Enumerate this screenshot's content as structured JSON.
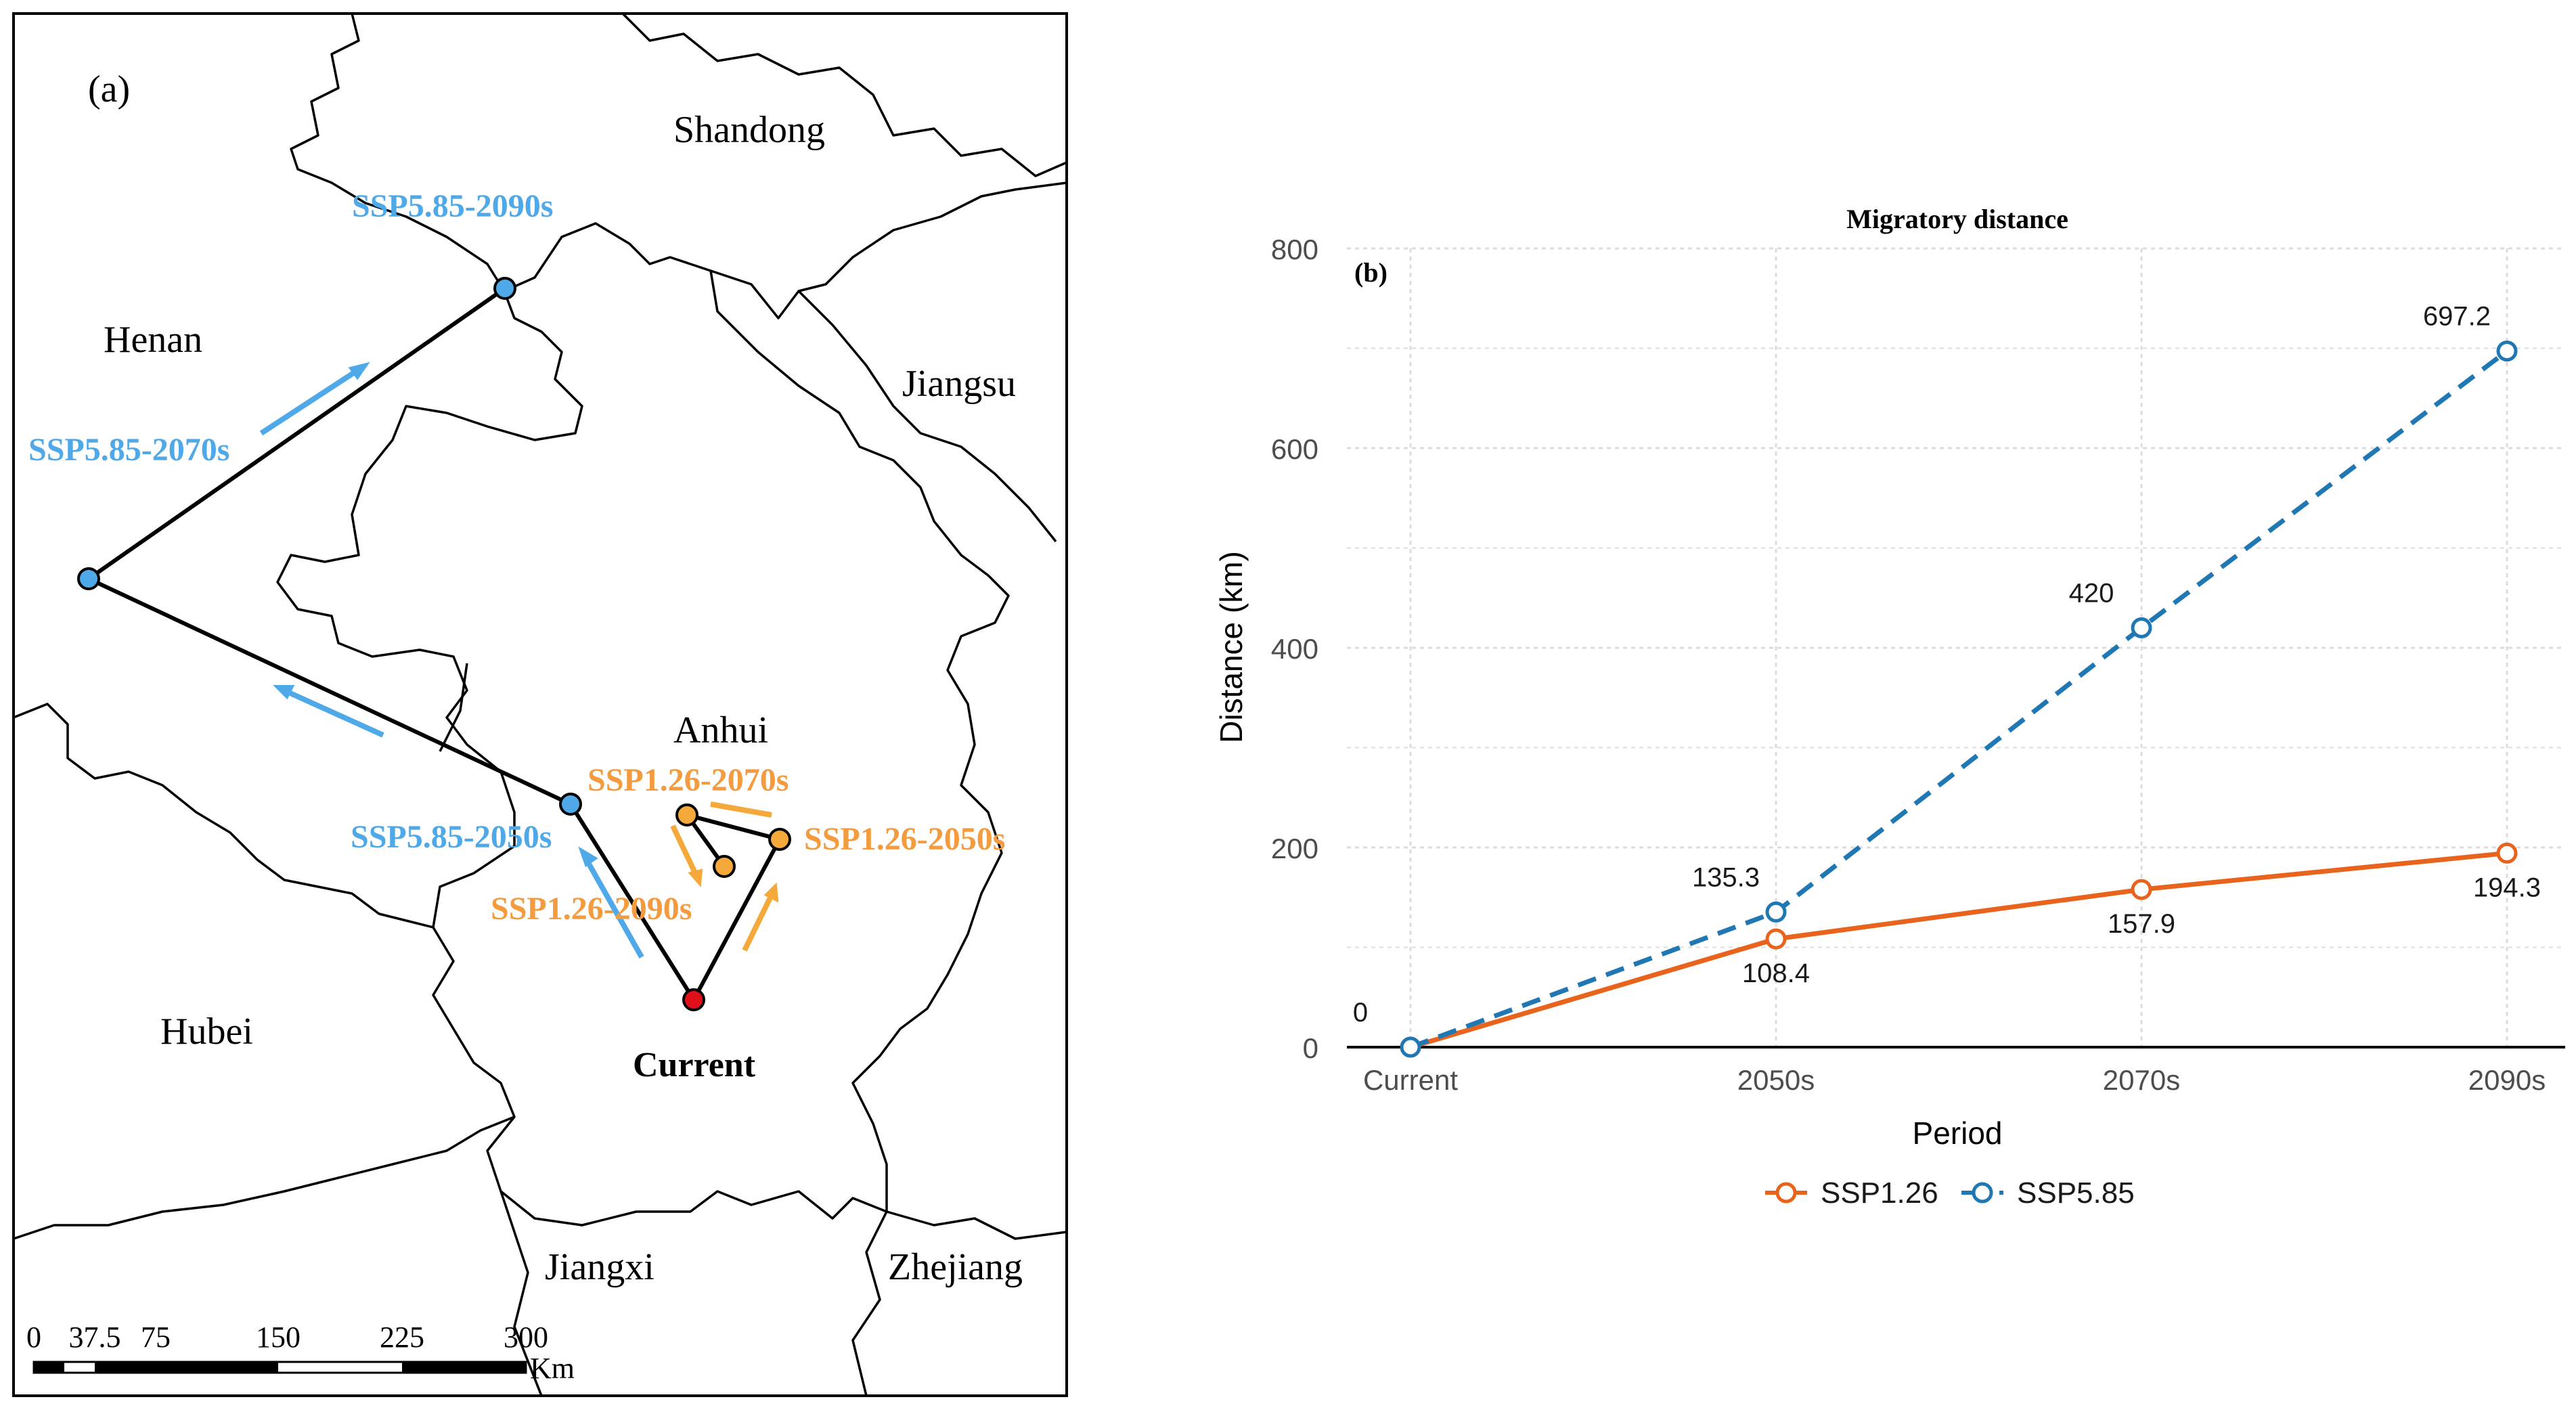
{
  "map": {
    "panel_label": "(a)",
    "provinces": [
      "Shandong",
      "Henan",
      "Jiangsu",
      "Anhui",
      "Hubei",
      "Jiangxi",
      "Zhejiang"
    ],
    "current_label": "Current",
    "ssp585_labels": [
      "SSP5.85-2090s",
      "SSP5.85-2070s",
      "SSP5.85-2050s"
    ],
    "ssp126_labels": [
      "SSP1.26-2070s",
      "SSP1.26-2050s",
      "SSP1.26-2090s"
    ],
    "scale_ticks": [
      "0",
      "37.5",
      "75",
      "150",
      "225",
      "300"
    ],
    "scale_unit": "Km",
    "colors": {
      "ssp585": "#4fa9e8",
      "ssp126": "#f4a93a",
      "current": "#e0101a",
      "ssp126_label": "#f59b3f"
    }
  },
  "chart_data": {
    "type": "line",
    "panel_label": "(b)",
    "title": "Migratory distance",
    "xlabel": "Period",
    "ylabel": "Distance (km)",
    "categories": [
      "Current",
      "2050s",
      "2070s",
      "2090s"
    ],
    "ylim": [
      0,
      800
    ],
    "yticks": [
      "0",
      "200",
      "400",
      "600",
      "800"
    ],
    "grid": true,
    "legend_position": "bottom",
    "series": [
      {
        "name": "SSP1.26",
        "values": [
          0,
          108.4,
          157.9,
          194.3
        ],
        "labels": [
          "",
          "108.4",
          "157.9",
          "194.3"
        ],
        "color": "#e8641c",
        "dash": "solid"
      },
      {
        "name": "SSP5.85",
        "values": [
          0,
          135.3,
          420,
          697.2
        ],
        "labels": [
          "0",
          "135.3",
          "420",
          "697.2"
        ],
        "color": "#1f78b4",
        "dash": "dashed"
      }
    ]
  }
}
